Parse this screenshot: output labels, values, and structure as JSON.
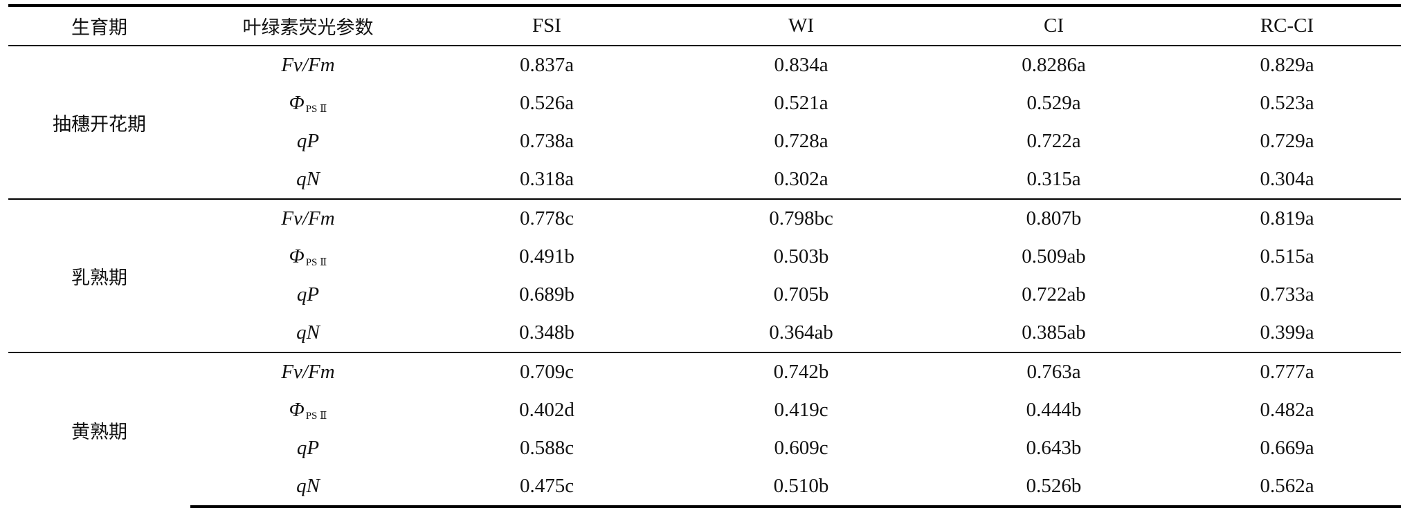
{
  "header": {
    "stage": "生育期",
    "param": "叶绿素荧光参数",
    "cols": [
      "FSI",
      "WI",
      "CI",
      "RC-CI"
    ]
  },
  "groups": [
    {
      "stage": "抽穗开花期",
      "rows": [
        {
          "param": "Fv/Fm",
          "values": [
            "0.837a",
            "0.834a",
            "0.8286a",
            "0.829a"
          ]
        },
        {
          "param_symbol": "Φ",
          "param_sub": "PS Ⅱ",
          "values": [
            "0.526a",
            "0.521a",
            "0.529a",
            "0.523a"
          ]
        },
        {
          "param": "qP",
          "values": [
            "0.738a",
            "0.728a",
            "0.722a",
            "0.729a"
          ]
        },
        {
          "param": "qN",
          "values": [
            "0.318a",
            "0.302a",
            "0.315a",
            "0.304a"
          ]
        }
      ]
    },
    {
      "stage": "乳熟期",
      "rows": [
        {
          "param": "Fv/Fm",
          "values": [
            "0.778c",
            "0.798bc",
            "0.807b",
            "0.819a"
          ]
        },
        {
          "param_symbol": "Φ",
          "param_sub": "PS Ⅱ",
          "values": [
            "0.491b",
            "0.503b",
            "0.509ab",
            "0.515a"
          ]
        },
        {
          "param": "qP",
          "values": [
            "0.689b",
            "0.705b",
            "0.722ab",
            "0.733a"
          ]
        },
        {
          "param": "qN",
          "values": [
            "0.348b",
            "0.364ab",
            "0.385ab",
            "0.399a"
          ]
        }
      ]
    },
    {
      "stage": "黄熟期",
      "rows": [
        {
          "param": "Fv/Fm",
          "values": [
            "0.709c",
            "0.742b",
            "0.763a",
            "0.777a"
          ]
        },
        {
          "param_symbol": "Φ",
          "param_sub": "PS Ⅱ",
          "values": [
            "0.402d",
            "0.419c",
            "0.444b",
            "0.482a"
          ]
        },
        {
          "param": "qP",
          "values": [
            "0.588c",
            "0.609c",
            "0.643b",
            "0.669a"
          ]
        },
        {
          "param": "qN",
          "values": [
            "0.475c",
            "0.510b",
            "0.526b",
            "0.562a"
          ]
        }
      ]
    }
  ]
}
